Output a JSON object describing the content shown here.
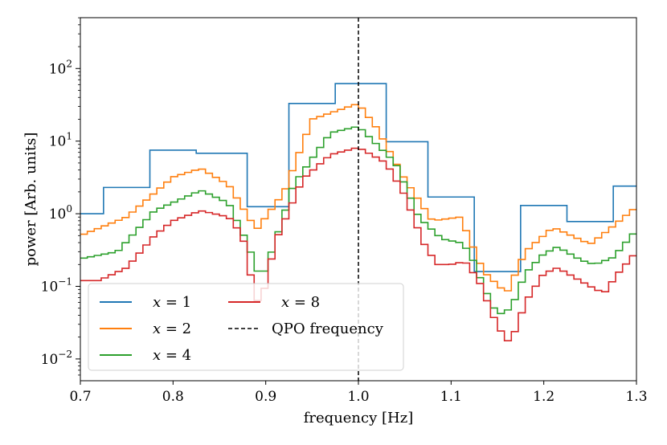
{
  "chart_data": {
    "type": "line",
    "step": true,
    "xlabel": "frequency [Hz]",
    "ylabel": "power [Arb. units]",
    "xlim": [
      0.7,
      1.3
    ],
    "ylim_log10": [
      -2.3,
      2.7
    ],
    "yscale": "log",
    "x_ticks": [
      {
        "v": 0.7,
        "label": "0.7"
      },
      {
        "v": 0.8,
        "label": "0.8"
      },
      {
        "v": 0.9,
        "label": "0.9"
      },
      {
        "v": 1.0,
        "label": "1.0"
      },
      {
        "v": 1.1,
        "label": "1.1"
      },
      {
        "v": 1.2,
        "label": "1.2"
      },
      {
        "v": 1.3,
        "label": "1.3"
      }
    ],
    "y_ticks": [
      {
        "exp": -2,
        "base": "10",
        "sup": "−2"
      },
      {
        "exp": -1,
        "base": "10",
        "sup": "−1"
      },
      {
        "exp": 0,
        "base": "10",
        "sup": "0"
      },
      {
        "exp": 1,
        "base": "10",
        "sup": "1"
      },
      {
        "exp": 2,
        "base": "10",
        "sup": "2"
      }
    ],
    "vline": {
      "x": 1.0,
      "label": "QPO frequency",
      "color": "#000000"
    },
    "legend": {
      "placement": "lower-left",
      "entries": [
        {
          "label_var": "x",
          "label_rest": " = 1",
          "color": "#1f77b4"
        },
        {
          "label_var": "x",
          "label_rest": " = 2",
          "color": "#ff7f0e"
        },
        {
          "label_var": "x",
          "label_rest": " = 4",
          "color": "#2ca02c"
        },
        {
          "label_var": "x",
          "label_rest": " = 8",
          "color": "#d62728"
        }
      ]
    },
    "series": [
      {
        "name": "x = 1",
        "color": "#1f77b4",
        "edges": [
          0.6,
          0.725,
          0.775,
          0.825,
          0.88,
          0.925,
          0.975,
          1.03,
          1.075,
          1.125,
          1.175,
          1.225,
          1.275,
          1.3
        ],
        "values": [
          1.0,
          2.3,
          7.5,
          6.8,
          1.25,
          33,
          62,
          9.8,
          1.7,
          0.16,
          1.3,
          0.78,
          2.4
        ]
      },
      {
        "name": "x = 2",
        "color": "#ff7f0e",
        "points": [
          [
            0.7,
            0.5
          ],
          [
            0.75,
            0.9
          ],
          [
            0.8,
            3.2
          ],
          [
            0.83,
            4.2
          ],
          [
            0.86,
            2.5
          ],
          [
            0.89,
            0.6
          ],
          [
            0.92,
            2.0
          ],
          [
            0.95,
            20
          ],
          [
            1.0,
            33
          ],
          [
            1.02,
            15
          ],
          [
            1.05,
            3
          ],
          [
            1.08,
            0.8
          ],
          [
            1.11,
            0.9
          ],
          [
            1.135,
            0.16
          ],
          [
            1.16,
            0.08
          ],
          [
            1.18,
            0.3
          ],
          [
            1.21,
            0.65
          ],
          [
            1.23,
            0.5
          ],
          [
            1.25,
            0.38
          ],
          [
            1.27,
            0.6
          ],
          [
            1.3,
            1.25
          ]
        ]
      },
      {
        "name": "x = 4",
        "color": "#2ca02c",
        "points": [
          [
            0.7,
            0.24
          ],
          [
            0.74,
            0.3
          ],
          [
            0.78,
            1.1
          ],
          [
            0.83,
            2.1
          ],
          [
            0.86,
            1.4
          ],
          [
            0.88,
            0.4
          ],
          [
            0.895,
            0.12
          ],
          [
            0.91,
            0.4
          ],
          [
            0.93,
            2.5
          ],
          [
            0.97,
            13
          ],
          [
            1.0,
            16
          ],
          [
            1.04,
            5
          ],
          [
            1.065,
            0.9
          ],
          [
            1.09,
            0.45
          ],
          [
            1.11,
            0.4
          ],
          [
            1.12,
            0.3
          ],
          [
            1.135,
            0.1
          ],
          [
            1.15,
            0.04
          ],
          [
            1.165,
            0.05
          ],
          [
            1.18,
            0.15
          ],
          [
            1.2,
            0.28
          ],
          [
            1.215,
            0.35
          ],
          [
            1.24,
            0.23
          ],
          [
            1.255,
            0.2
          ],
          [
            1.275,
            0.25
          ],
          [
            1.3,
            0.6
          ]
        ]
      },
      {
        "name": "x = 8",
        "color": "#d62728",
        "points": [
          [
            0.7,
            0.12
          ],
          [
            0.72,
            0.12
          ],
          [
            0.75,
            0.18
          ],
          [
            0.78,
            0.5
          ],
          [
            0.8,
            0.8
          ],
          [
            0.83,
            1.1
          ],
          [
            0.86,
            0.9
          ],
          [
            0.875,
            0.5
          ],
          [
            0.885,
            0.12
          ],
          [
            0.89,
            0.06
          ],
          [
            0.9,
            0.1
          ],
          [
            0.91,
            0.4
          ],
          [
            0.94,
            3.0
          ],
          [
            0.97,
            6.5
          ],
          [
            1.0,
            8.2
          ],
          [
            1.03,
            5
          ],
          [
            1.05,
            1.8
          ],
          [
            1.07,
            0.4
          ],
          [
            1.085,
            0.2
          ],
          [
            1.1,
            0.2
          ],
          [
            1.115,
            0.22
          ],
          [
            1.13,
            0.12
          ],
          [
            1.145,
            0.04
          ],
          [
            1.16,
            0.017
          ],
          [
            1.17,
            0.025
          ],
          [
            1.18,
            0.06
          ],
          [
            1.2,
            0.15
          ],
          [
            1.215,
            0.18
          ],
          [
            1.23,
            0.14
          ],
          [
            1.25,
            0.1
          ],
          [
            1.265,
            0.08
          ],
          [
            1.28,
            0.15
          ],
          [
            1.3,
            0.3
          ]
        ]
      }
    ]
  }
}
